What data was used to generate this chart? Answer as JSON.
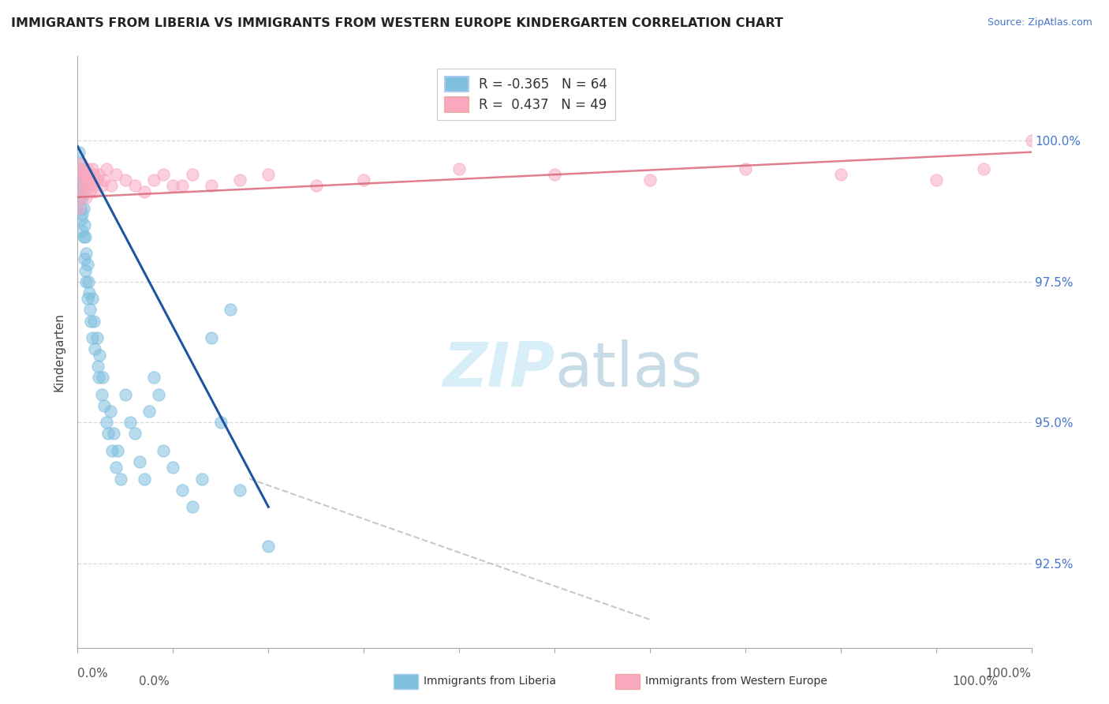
{
  "title": "IMMIGRANTS FROM LIBERIA VS IMMIGRANTS FROM WESTERN EUROPE KINDERGARTEN CORRELATION CHART",
  "source_text": "Source: ZipAtlas.com",
  "ylabel": "Kindergarten",
  "ylabel_tick_values": [
    92.5,
    95.0,
    97.5,
    100.0
  ],
  "xlim": [
    0,
    100
  ],
  "ylim": [
    91.0,
    101.5
  ],
  "legend_label_blue": "Immigrants from Liberia",
  "legend_label_pink": "Immigrants from Western Europe",
  "R_blue": -0.365,
  "N_blue": 64,
  "R_pink": 0.437,
  "N_pink": 49,
  "blue_color": "#7fbfdf",
  "pink_color": "#f9a8c0",
  "trendline_blue": "#2055a0",
  "trendline_pink": "#d9687a",
  "trendline_gray": "#bbbbbb",
  "watermark_color": "#d8eef8",
  "grid_color": "#d8d8d8",
  "background_color": "#ffffff",
  "blue_scatter_x": [
    0.1,
    0.1,
    0.2,
    0.2,
    0.2,
    0.3,
    0.3,
    0.3,
    0.4,
    0.4,
    0.5,
    0.5,
    0.5,
    0.6,
    0.6,
    0.7,
    0.7,
    0.8,
    0.8,
    0.9,
    0.9,
    1.0,
    1.0,
    1.1,
    1.2,
    1.3,
    1.4,
    1.5,
    1.5,
    1.7,
    1.8,
    2.0,
    2.1,
    2.2,
    2.3,
    2.5,
    2.6,
    2.8,
    3.0,
    3.2,
    3.4,
    3.6,
    3.8,
    4.0,
    4.2,
    4.5,
    5.0,
    5.5,
    6.0,
    6.5,
    7.0,
    7.5,
    8.0,
    8.5,
    9.0,
    10.0,
    11.0,
    12.0,
    13.0,
    14.0,
    15.0,
    16.0,
    17.0,
    20.0
  ],
  "blue_scatter_y": [
    99.8,
    99.5,
    99.6,
    99.3,
    99.1,
    99.4,
    99.0,
    98.8,
    99.2,
    98.6,
    99.0,
    98.7,
    98.4,
    98.8,
    98.3,
    98.5,
    97.9,
    98.3,
    97.7,
    98.0,
    97.5,
    97.8,
    97.2,
    97.5,
    97.3,
    97.0,
    96.8,
    97.2,
    96.5,
    96.8,
    96.3,
    96.5,
    96.0,
    95.8,
    96.2,
    95.5,
    95.8,
    95.3,
    95.0,
    94.8,
    95.2,
    94.5,
    94.8,
    94.2,
    94.5,
    94.0,
    95.5,
    95.0,
    94.8,
    94.3,
    94.0,
    95.2,
    95.8,
    95.5,
    94.5,
    94.2,
    93.8,
    93.5,
    94.0,
    96.5,
    95.0,
    97.0,
    93.8,
    92.8
  ],
  "pink_scatter_x": [
    0.2,
    0.3,
    0.4,
    0.5,
    0.5,
    0.6,
    0.7,
    0.8,
    0.9,
    1.0,
    1.0,
    1.1,
    1.2,
    1.3,
    1.4,
    1.5,
    1.6,
    1.7,
    1.8,
    2.0,
    2.2,
    2.5,
    2.8,
    3.0,
    3.5,
    4.0,
    5.0,
    6.0,
    7.0,
    8.0,
    9.0,
    10.0,
    12.0,
    14.0,
    17.0,
    20.0,
    25.0,
    30.0,
    40.0,
    50.0,
    60.0,
    70.0,
    80.0,
    90.0,
    95.0,
    100.0,
    0.15,
    0.25,
    11.0
  ],
  "pink_scatter_y": [
    99.5,
    99.3,
    99.6,
    99.4,
    99.1,
    99.5,
    99.2,
    99.4,
    99.0,
    99.5,
    99.2,
    99.3,
    99.4,
    99.1,
    99.3,
    99.5,
    99.2,
    99.4,
    99.1,
    99.3,
    99.4,
    99.2,
    99.3,
    99.5,
    99.2,
    99.4,
    99.3,
    99.2,
    99.1,
    99.3,
    99.4,
    99.2,
    99.4,
    99.2,
    99.3,
    99.4,
    99.2,
    99.3,
    99.5,
    99.4,
    99.3,
    99.5,
    99.4,
    99.3,
    99.5,
    100.0,
    98.8,
    99.0,
    99.2
  ],
  "blue_trend_x0": 0.0,
  "blue_trend_y0": 99.9,
  "blue_trend_x1": 20.0,
  "blue_trend_y1": 93.5,
  "gray_trend_x0": 18.0,
  "gray_trend_y0": 94.0,
  "gray_trend_x1": 60.0,
  "gray_trend_y1": 91.5,
  "pink_trend_x0": 0.0,
  "pink_trend_y0": 99.0,
  "pink_trend_x1": 100.0,
  "pink_trend_y1": 99.8
}
